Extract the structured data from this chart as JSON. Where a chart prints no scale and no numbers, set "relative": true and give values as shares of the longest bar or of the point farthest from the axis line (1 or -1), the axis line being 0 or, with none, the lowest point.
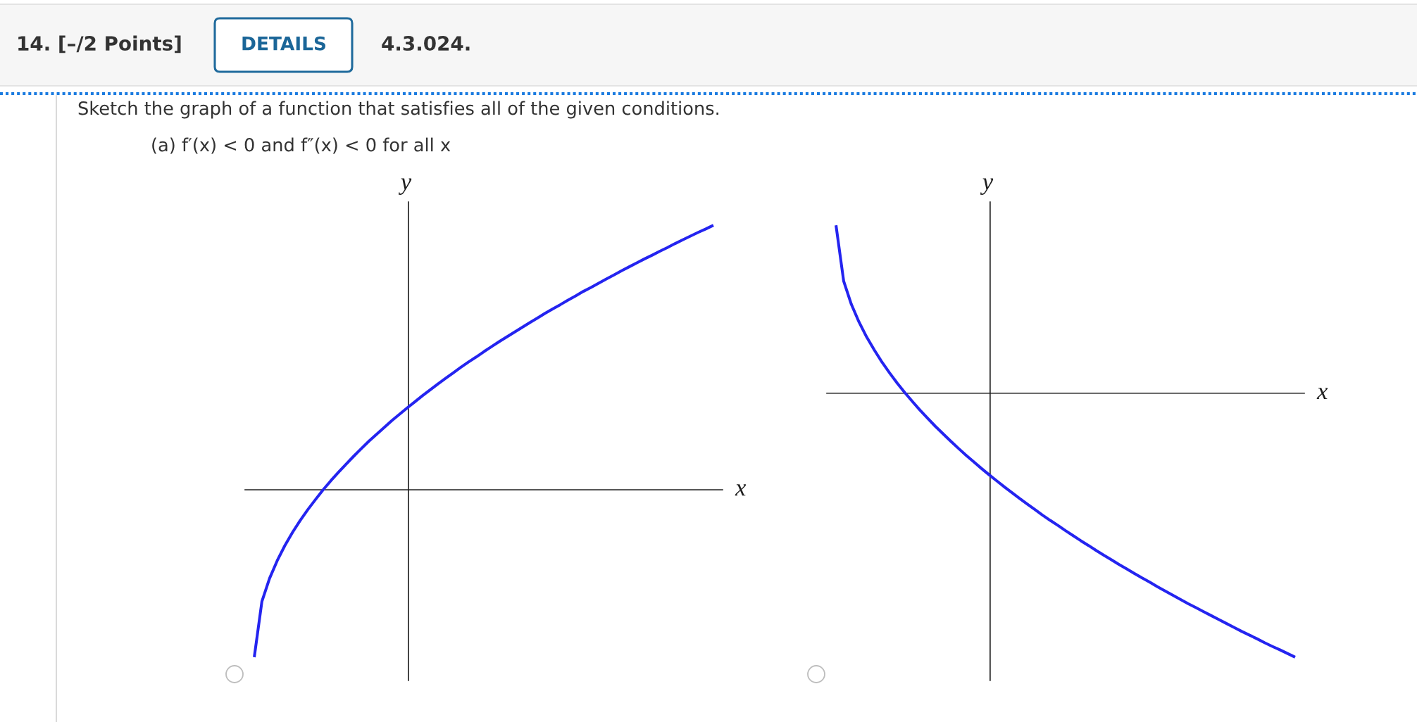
{
  "chart_data": [
    {
      "type": "other",
      "title": "14. [–/2 Points]",
      "annotations": [
        "DETAILS",
        "4.3.024.",
        "Sketch the graph of a function that satisfies all of the given conditions.",
        "(a) f′(x) < 0 and f″(x) < 0 for all x"
      ]
    },
    {
      "type": "line",
      "relative": true,
      "xlabel": "x",
      "ylabel": "y",
      "categories": [
        null,
        null,
        null,
        null,
        null,
        null,
        null,
        null,
        null,
        null,
        null,
        null,
        null,
        null,
        null,
        null,
        null,
        null,
        null,
        null,
        null,
        null,
        null,
        null,
        null,
        null,
        null,
        null,
        null,
        null,
        null,
        null,
        null,
        null,
        null,
        null,
        null,
        null,
        null,
        null,
        null,
        null,
        null,
        null,
        null,
        null,
        null,
        null,
        null,
        null,
        null,
        null,
        null,
        null,
        null,
        null,
        null,
        null,
        null,
        null,
        null
      ],
      "series": [
        {
          "color": "#2424f0",
          "values": [
            -0.633,
            -0.422,
            -0.335,
            -0.268,
            -0.211,
            -0.161,
            -0.116,
            -0.075,
            -0.037,
            0,
            0.034,
            0.066,
            0.097,
            0.127,
            0.156,
            0.184,
            0.21,
            0.236,
            0.262,
            0.286,
            0.31,
            0.333,
            0.356,
            0.378,
            0.4,
            0.421,
            0.442,
            0.463,
            0.483,
            0.502,
            0.522,
            0.541,
            0.56,
            0.578,
            0.596,
            0.614,
            0.632,
            0.649,
            0.667,
            0.684,
            0.7,
            0.717,
            0.733,
            0.75,
            0.765,
            0.781,
            0.797,
            0.812,
            0.828,
            0.843,
            0.858,
            0.873,
            0.887,
            0.902,
            0.916,
            0.931,
            0.945,
            0.959,
            0.973,
            0.986,
            1
          ]
        }
      ]
    },
    {
      "type": "line",
      "relative": true,
      "xlabel": "x",
      "ylabel": "y",
      "categories": [
        null,
        null,
        null,
        null,
        null,
        null,
        null,
        null,
        null,
        null,
        null,
        null,
        null,
        null,
        null,
        null,
        null,
        null,
        null,
        null,
        null,
        null,
        null,
        null,
        null,
        null,
        null,
        null,
        null,
        null,
        null,
        null,
        null,
        null,
        null,
        null,
        null,
        null,
        null,
        null,
        null,
        null,
        null,
        null,
        null,
        null,
        null,
        null,
        null,
        null,
        null,
        null,
        null,
        null,
        null,
        null,
        null,
        null,
        null,
        null,
        null
      ],
      "series": [
        {
          "color": "#2424f0",
          "values": [
            0.636,
            0.425,
            0.337,
            0.27,
            0.213,
            0.164,
            0.118,
            0.077,
            0.038,
            0.002,
            -0.032,
            -0.065,
            -0.096,
            -0.126,
            -0.154,
            -0.182,
            -0.209,
            -0.235,
            -0.26,
            -0.285,
            -0.309,
            -0.332,
            -0.355,
            -0.377,
            -0.399,
            -0.42,
            -0.441,
            -0.462,
            -0.482,
            -0.501,
            -0.521,
            -0.54,
            -0.559,
            -0.577,
            -0.596,
            -0.614,
            -0.631,
            -0.649,
            -0.666,
            -0.683,
            -0.7,
            -0.716,
            -0.733,
            -0.749,
            -0.765,
            -0.781,
            -0.797,
            -0.812,
            -0.827,
            -0.842,
            -0.857,
            -0.872,
            -0.887,
            -0.902,
            -0.916,
            -0.93,
            -0.945,
            -0.959,
            -0.972,
            -0.986,
            -1
          ]
        }
      ]
    }
  ]
}
